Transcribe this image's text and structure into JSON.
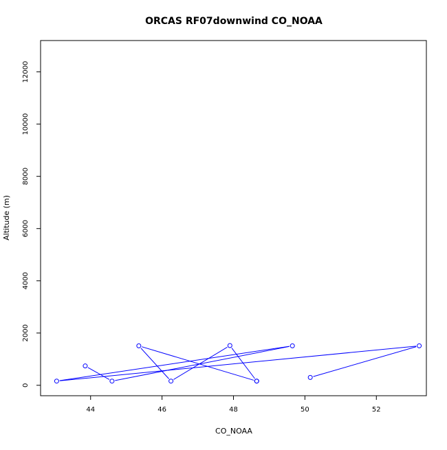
{
  "chart_data": {
    "type": "line",
    "title": "ORCAS RF07downwind CO_NOAA",
    "xlabel": "CO_NOAA",
    "ylabel": "Altitude (m)",
    "xlim": [
      42.6,
      53.4
    ],
    "ylim": [
      -400,
      13200
    ],
    "xticks": [
      "44",
      "46",
      "48",
      "50",
      "52"
    ],
    "yticks": [
      "0",
      "2000",
      "4000",
      "6000",
      "8000",
      "10000",
      "12000"
    ],
    "grid": false,
    "series": [
      {
        "color": "#0000ff",
        "marker": "open-circle",
        "x": [
          50.15,
          53.2,
          43.05,
          49.65,
          44.6,
          43.85
        ],
        "y": [
          300,
          1510,
          160,
          1510,
          160,
          740
        ]
      },
      {
        "color": "#0000ff",
        "marker": "open-circle",
        "x": [
          48.65,
          45.35,
          46.25,
          47.9,
          48.65
        ],
        "y": [
          160,
          1510,
          160,
          1520,
          160
        ]
      }
    ]
  }
}
